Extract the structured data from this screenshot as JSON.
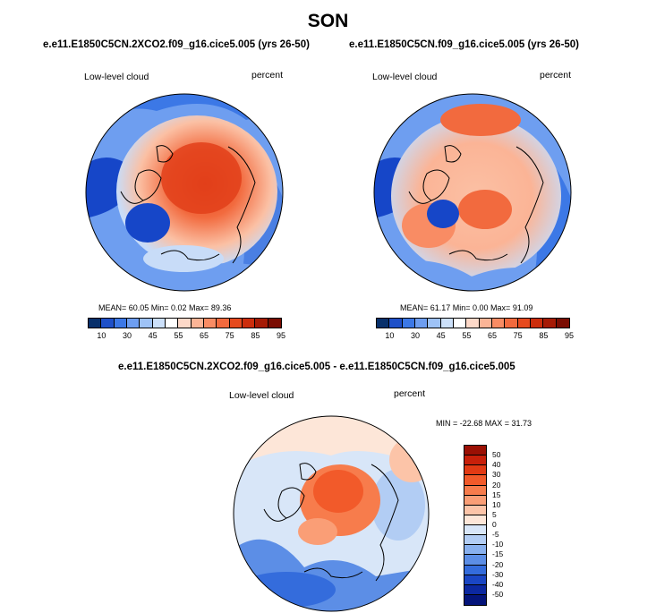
{
  "figure": {
    "season_title": "SON"
  },
  "panel_left": {
    "case_title": "e.e11.E1850C5CN.2XCO2.f09_g16.cice5.005 (yrs 26-50)",
    "variable_label": "Low-level cloud",
    "units_label": "percent",
    "stats_line": "MEAN= 60.05   Min=   0.02   Max=  89.36"
  },
  "panel_right": {
    "case_title": "e.e11.E1850C5CN.f09_g16.cice5.005 (yrs 26-50)",
    "variable_label": "Low-level cloud",
    "units_label": "percent",
    "stats_line": "MEAN= 61.17   Min=   0.00   Max=  91.09"
  },
  "panel_diff": {
    "case_title": "e.e11.E1850C5CN.2XCO2.f09_g16.cice5.005 - e.e11.E1850C5CN.f09_g16.cice5.005",
    "variable_label": "Low-level cloud",
    "units_label": "percent",
    "stats_line": "MIN = -22.68 MAX =  31.73"
  },
  "colorbar_abs": {
    "tick_labels": [
      "10",
      "30",
      "45",
      "55",
      "65",
      "75",
      "85",
      "95"
    ],
    "colors": [
      "#08306b",
      "#1e50c8",
      "#3c78e6",
      "#6e9ef0",
      "#9ec2f6",
      "#cce0fa",
      "#ffffff",
      "#fdd8c8",
      "#fbb496",
      "#f98c64",
      "#f26a3e",
      "#e64a1e",
      "#cc2d0c",
      "#a61a05",
      "#7a0c02"
    ]
  },
  "colorbar_diff": {
    "tick_labels": [
      "50",
      "40",
      "30",
      "20",
      "15",
      "10",
      "5",
      "0",
      "-5",
      "-10",
      "-15",
      "-20",
      "-30",
      "-40",
      "-50"
    ],
    "colors": [
      "#9b1004",
      "#c8200a",
      "#e23a14",
      "#f25a2a",
      "#f77c4c",
      "#fa9e76",
      "#fcc4a8",
      "#fde6d8",
      "#d8e6f8",
      "#b2cdf4",
      "#88b0ee",
      "#5c8ee6",
      "#346cdc",
      "#1a46c4",
      "#0c28a0",
      "#04147a"
    ]
  },
  "colors": {
    "ocean_blue": "#4a7fe3",
    "deep_blue": "#1646c8",
    "light_blue": "#c8dcf8",
    "warm_orange": "#f26a3e",
    "deep_red": "#e23f1a",
    "pale_red": "#fbc0a4"
  }
}
